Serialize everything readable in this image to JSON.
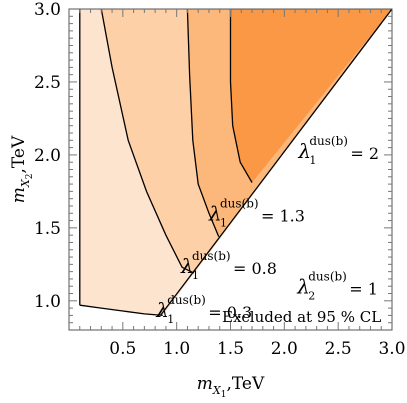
{
  "chart_data": {
    "type": "contour",
    "title": "",
    "xlabel": {
      "main": "m",
      "sub1": "X",
      "sub2": "1",
      "unit": ",TeV"
    },
    "ylabel": {
      "main": "m",
      "sub1": "X",
      "sub2": "2",
      "unit": ",TeV"
    },
    "xlim": [
      0.0,
      3.0
    ],
    "ylim": [
      0.8,
      3.0
    ],
    "xticks": [
      "0.5",
      "1.0",
      "1.5",
      "2.0",
      "2.5",
      "3.0"
    ],
    "yticks": [
      "1.0",
      "1.5",
      "2.0",
      "2.5",
      "3.0"
    ],
    "xtick_values": [
      0.5,
      1.0,
      1.5,
      2.0,
      2.5,
      3.0
    ],
    "ytick_values": [
      1.0,
      1.5,
      2.0,
      2.5,
      3.0
    ],
    "diagonal": [
      [
        0.85,
        0.9
      ],
      [
        3.0,
        3.0
      ]
    ],
    "region_boundary_left": [
      [
        0.1,
        0.97
      ],
      [
        0.1,
        3.0
      ]
    ],
    "regions": [
      {
        "name": "λ1 = 0.3",
        "color": "#fde4cf"
      },
      {
        "name": "λ1 = 0.8",
        "color": "#fdd0a8"
      },
      {
        "name": "λ1 = 1.3",
        "color": "#fcb77a"
      },
      {
        "name": "λ1 = 2",
        "color": "#fa9845"
      }
    ],
    "contours": [
      {
        "label_value": "0.3",
        "points": [
          [
            0.1,
            0.97
          ],
          [
            0.3,
            0.95
          ],
          [
            0.5,
            0.93
          ],
          [
            0.7,
            0.91
          ],
          [
            0.87,
            0.9
          ]
        ]
      },
      {
        "label_value": "0.8",
        "points": [
          [
            0.3,
            3.0
          ],
          [
            0.4,
            2.6
          ],
          [
            0.55,
            2.1
          ],
          [
            0.72,
            1.75
          ],
          [
            0.9,
            1.45
          ],
          [
            1.05,
            1.23
          ],
          [
            1.16,
            1.19
          ]
        ]
      },
      {
        "label_value": "1.3",
        "points": [
          [
            1.1,
            3.0
          ],
          [
            1.12,
            2.55
          ],
          [
            1.15,
            2.1
          ],
          [
            1.2,
            1.8
          ],
          [
            1.3,
            1.6
          ],
          [
            1.39,
            1.44
          ]
        ]
      },
      {
        "label_value": "2",
        "points": [
          [
            1.5,
            3.0
          ],
          [
            1.5,
            2.5
          ],
          [
            1.52,
            2.2
          ],
          [
            1.59,
            1.95
          ],
          [
            1.7,
            1.81
          ]
        ]
      }
    ],
    "annotations": [
      {
        "lambda": "λ",
        "sub": "1",
        "sup": "dus(b)",
        "value": "= 2",
        "at": [
          2.13,
          1.98
        ]
      },
      {
        "lambda": "λ",
        "sub": "1",
        "sup": "dus(b)",
        "value": "= 1.3",
        "at": [
          1.3,
          1.55
        ]
      },
      {
        "lambda": "λ",
        "sub": "1",
        "sup": "dus(b)",
        "value": "= 0.8",
        "at": [
          1.04,
          1.19
        ]
      },
      {
        "lambda": "λ",
        "sub": "2",
        "sup": "dus(b)",
        "value": "= 1",
        "at": [
          2.12,
          1.05
        ]
      },
      {
        "lambda": "λ",
        "sub": "1",
        "sup": "dus(b)",
        "value": "= 0.3",
        "at": [
          0.81,
          0.89
        ]
      }
    ],
    "note": "Excluded at 95 % CL"
  }
}
